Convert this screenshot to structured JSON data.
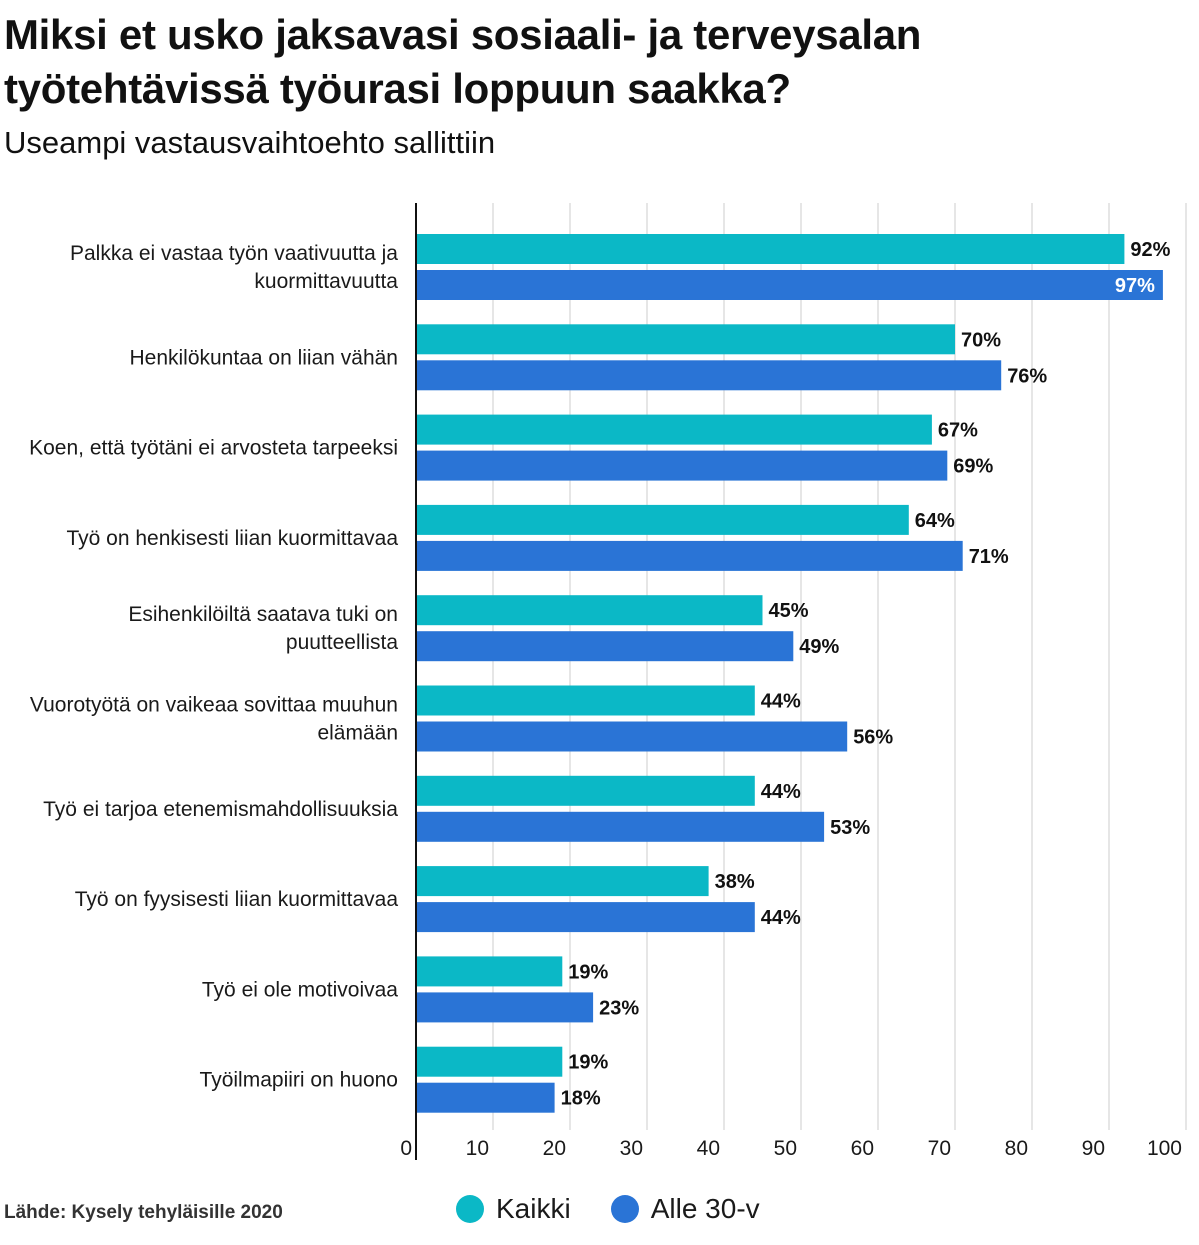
{
  "title": "Miksi et usko jaksavasi sosiaali- ja terveysalan työtehtävissä työurasi loppuun saakka?",
  "subtitle": "Useampi vastausvaihtoehto sallittiin",
  "source": "Lähde: Kysely tehyläisille 2020",
  "chart_data": {
    "type": "bar",
    "orientation": "horizontal",
    "title": "Miksi et usko jaksavasi sosiaali- ja terveysalan työtehtävissä työurasi loppuun saakka?",
    "subtitle": "Useampi vastausvaihtoehto sallittiin",
    "categories": [
      [
        "Palkka ei vastaa työn vaativuutta ja",
        "kuormittavuutta"
      ],
      [
        "Henkilökuntaa on liian vähän"
      ],
      [
        "Koen, että työtäni ei arvosteta tarpeeksi"
      ],
      [
        "Työ on henkisesti liian kuormittavaa"
      ],
      [
        "Esihenkilöiltä saatava tuki on",
        "puutteellista"
      ],
      [
        "Vuorotyötä on vaikeaa sovittaa muuhun",
        "elämään"
      ],
      [
        "Työ ei tarjoa etenemismahdollisuuksia"
      ],
      [
        "Työ on fyysisesti liian kuormittavaa"
      ],
      [
        "Työ ei ole motivoivaa"
      ],
      [
        "Työilmapiiri on huono"
      ]
    ],
    "series": [
      {
        "name": "Kaikki",
        "color": "#0bb8c6",
        "values": [
          92,
          70,
          67,
          64,
          45,
          44,
          44,
          38,
          19,
          19
        ]
      },
      {
        "name": "Alle 30-v",
        "color": "#2a74d6",
        "values": [
          97,
          76,
          69,
          71,
          49,
          56,
          53,
          44,
          23,
          18
        ]
      }
    ],
    "value_suffix": "%",
    "xlim": [
      0,
      100
    ],
    "xticks": [
      0,
      10,
      20,
      30,
      40,
      50,
      60,
      70,
      80,
      90,
      100
    ],
    "grid": true,
    "legend": "bottom"
  }
}
